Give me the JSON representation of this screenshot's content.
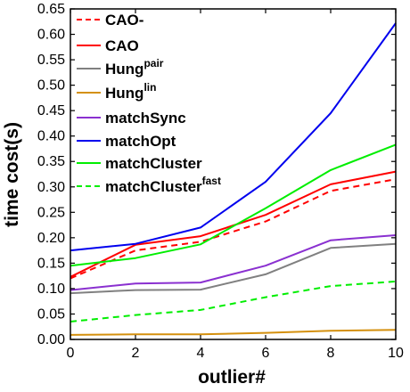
{
  "chart_data": {
    "type": "line",
    "xlabel": "outlier#",
    "ylabel": "time cost(s)",
    "xlim": [
      0,
      10
    ],
    "ylim": [
      0,
      0.65
    ],
    "x_ticks": [
      "0",
      "2",
      "4",
      "6",
      "8",
      "10"
    ],
    "y_ticks": [
      "0.00",
      "0.05",
      "0.10",
      "0.15",
      "0.20",
      "0.25",
      "0.30",
      "0.35",
      "0.40",
      "0.45",
      "0.50",
      "0.55",
      "0.60",
      "0.65"
    ],
    "grid": false,
    "legend_position": "top-left",
    "x": [
      0,
      2,
      4,
      6,
      8,
      10
    ],
    "series": [
      {
        "name": "CAO-",
        "sup": "",
        "color": "#ff0000",
        "dash": true,
        "values": [
          0.12,
          0.175,
          0.192,
          0.232,
          0.292,
          0.315
        ]
      },
      {
        "name": "CAO",
        "sup": "",
        "color": "#ff0000",
        "dash": false,
        "values": [
          0.123,
          0.186,
          0.203,
          0.245,
          0.305,
          0.33
        ]
      },
      {
        "name": "Hung",
        "sup": "pair",
        "color": "#808080",
        "dash": false,
        "values": [
          0.091,
          0.097,
          0.098,
          0.128,
          0.18,
          0.188
        ]
      },
      {
        "name": "Hung",
        "sup": "lin",
        "color": "#d4900e",
        "dash": false,
        "values": [
          0.009,
          0.01,
          0.01,
          0.013,
          0.017,
          0.019
        ]
      },
      {
        "name": "matchSync",
        "sup": "",
        "color": "#8a30d0",
        "dash": false,
        "values": [
          0.097,
          0.11,
          0.112,
          0.145,
          0.195,
          0.205
        ]
      },
      {
        "name": "matchOpt",
        "sup": "",
        "color": "#0000ee",
        "dash": false,
        "values": [
          0.175,
          0.188,
          0.22,
          0.31,
          0.445,
          0.622
        ]
      },
      {
        "name": "matchCluster",
        "sup": "",
        "color": "#00ee00",
        "dash": false,
        "values": [
          0.145,
          0.16,
          0.187,
          0.258,
          0.333,
          0.383
        ]
      },
      {
        "name": "matchCluster",
        "sup": "fast",
        "color": "#00ee00",
        "dash": true,
        "values": [
          0.035,
          0.048,
          0.058,
          0.083,
          0.105,
          0.114
        ]
      }
    ]
  }
}
